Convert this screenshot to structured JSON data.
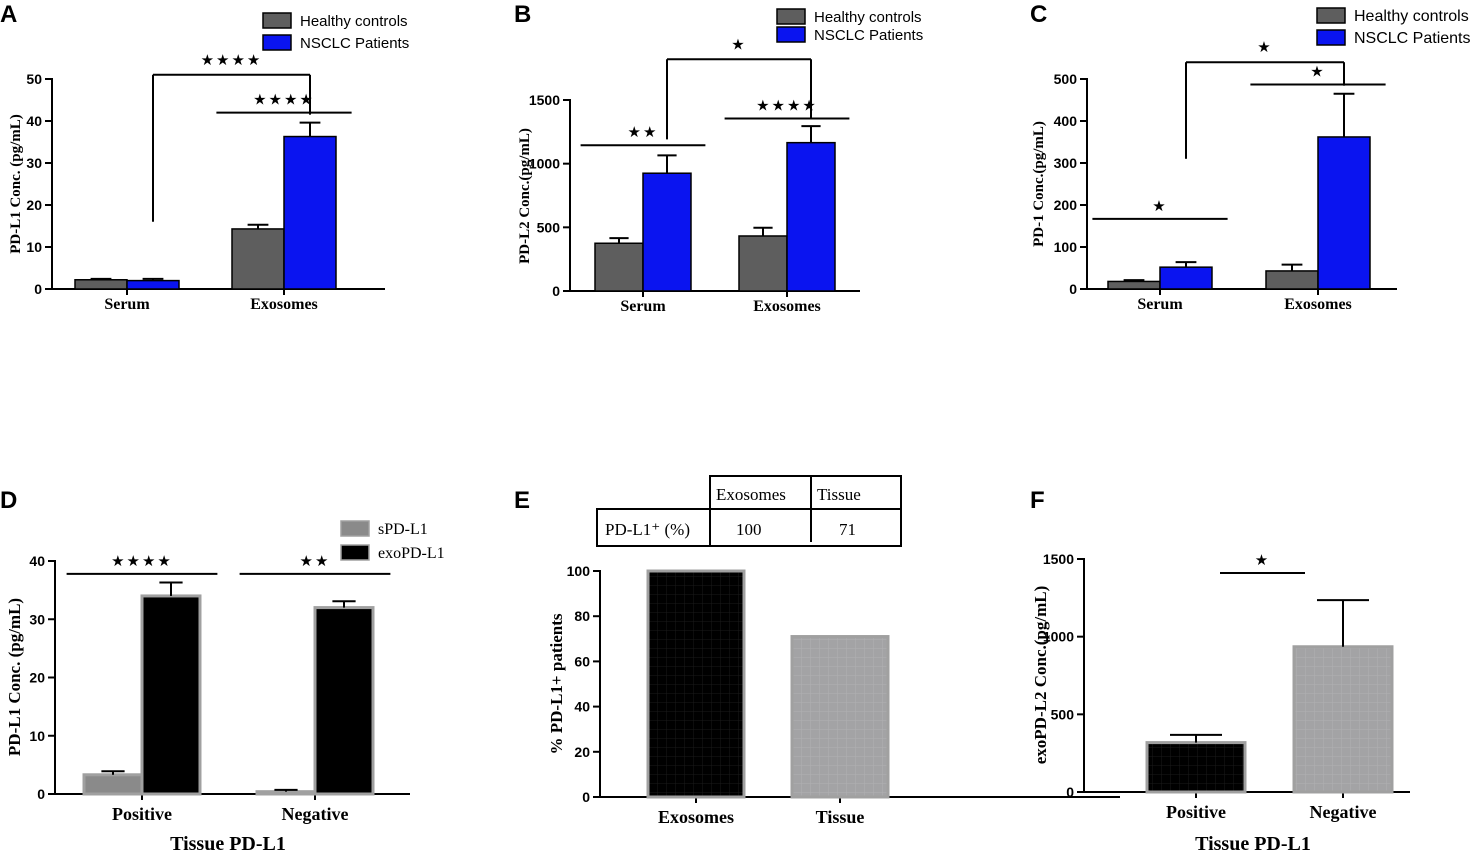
{
  "colors": {
    "healthy": "#5e5e5e",
    "nsclc": "#0a14f0",
    "spdl1": "#8a8a8a",
    "exopdl1": "#000000",
    "exosomes_bar": "#000000",
    "tissue_bar": "#a3a3a5",
    "positive_bar": "#000000",
    "negative_bar": "#a3a3a5"
  },
  "chart_data": [
    {
      "panel": "A",
      "type": "bar",
      "ylabel": "PD-L1 Conc. (pg/mL)",
      "categories": [
        "Serum",
        "Exosomes"
      ],
      "ylim": [
        0,
        50
      ],
      "yticks": [
        0,
        10,
        20,
        30,
        40,
        50
      ],
      "legend": [
        "Healthy controls",
        "NSCLC Patients"
      ],
      "legend_position": "top-right",
      "series": [
        {
          "name": "Healthy controls",
          "color": "healthy",
          "values": [
            2.2,
            14.3
          ],
          "errors": [
            0.2,
            1.0
          ]
        },
        {
          "name": "NSCLC Patients",
          "color": "nsclc",
          "values": [
            2.0,
            36.3
          ],
          "errors": [
            0.4,
            3.3
          ]
        }
      ],
      "annotations": [
        {
          "label": "★★★★",
          "kind": "line",
          "from": [
            1,
            0
          ],
          "to": [
            1,
            1
          ],
          "y": 42
        },
        {
          "label": "★★★★",
          "kind": "bracket",
          "from": [
            0,
            1
          ],
          "to": [
            1,
            1
          ],
          "y": 51
        }
      ]
    },
    {
      "panel": "B",
      "type": "bar",
      "ylabel": "PD-L2 Conc.(pg/mL)",
      "categories": [
        "Serum",
        "Exosomes"
      ],
      "ylim": [
        0,
        1500
      ],
      "yticks": [
        0,
        500,
        1000,
        1500
      ],
      "legend": [
        "Healthy controls",
        "NSCLC Patients"
      ],
      "legend_position": "top-right",
      "series": [
        {
          "name": "Healthy controls",
          "color": "healthy",
          "values": [
            375,
            432
          ],
          "errors": [
            40,
            65
          ]
        },
        {
          "name": "NSCLC Patients",
          "color": "nsclc",
          "values": [
            925,
            1165
          ],
          "errors": [
            140,
            130
          ]
        }
      ],
      "annotations": [
        {
          "label": "★★",
          "kind": "line",
          "from": [
            0,
            0
          ],
          "to": [
            0,
            1
          ],
          "y": 1145
        },
        {
          "label": "★★★★",
          "kind": "line",
          "from": [
            1,
            0
          ],
          "to": [
            1,
            1
          ],
          "y": 1355
        },
        {
          "label": "★",
          "kind": "bracket",
          "from": [
            0,
            1
          ],
          "to": [
            1,
            1
          ],
          "y": 1820
        }
      ]
    },
    {
      "panel": "C",
      "type": "bar",
      "ylabel": "PD-1 Conc.(pg/mL)",
      "categories": [
        "Serum",
        "Exosomes"
      ],
      "ylim": [
        0,
        500
      ],
      "yticks": [
        0,
        100,
        200,
        300,
        400,
        500
      ],
      "legend": [
        "Healthy controls",
        "NSCLC Patients"
      ],
      "legend_position": "top-right",
      "series": [
        {
          "name": "Healthy controls",
          "color": "healthy",
          "values": [
            18,
            43
          ],
          "errors": [
            3,
            15
          ]
        },
        {
          "name": "NSCLC Patients",
          "color": "nsclc",
          "values": [
            52,
            362
          ],
          "errors": [
            12,
            103
          ]
        }
      ],
      "annotations": [
        {
          "label": "★",
          "kind": "line",
          "from": [
            0,
            0
          ],
          "to": [
            0,
            1
          ],
          "y": 167
        },
        {
          "label": "★",
          "kind": "line",
          "from": [
            1,
            0
          ],
          "to": [
            1,
            1
          ],
          "y": 487
        },
        {
          "label": "★",
          "kind": "bracket",
          "from": [
            0,
            1
          ],
          "to": [
            1,
            1
          ],
          "y": 540
        }
      ]
    },
    {
      "panel": "D",
      "type": "bar",
      "ylabel": "PD-L1 Conc. (pg/mL)",
      "xlabel": "Tissue PD-L1",
      "categories": [
        "Positive",
        "Negative"
      ],
      "ylim": [
        0,
        40
      ],
      "yticks": [
        0,
        10,
        20,
        30,
        40
      ],
      "legend": [
        "sPD-L1",
        "exoPD-L1"
      ],
      "legend_position": "top-right",
      "series": [
        {
          "name": "sPD-L1",
          "color": "spdl1",
          "values": [
            3.3,
            0.4
          ],
          "errors": [
            0.6,
            0.3
          ]
        },
        {
          "name": "exoPD-L1",
          "color": "exopdl1",
          "values": [
            34.0,
            32.0
          ],
          "errors": [
            2.3,
            1.1
          ]
        }
      ],
      "annotations": [
        {
          "label": "★★★★",
          "kind": "line",
          "from": [
            0,
            0
          ],
          "to": [
            0,
            1
          ],
          "y": 37.8
        },
        {
          "label": "★★",
          "kind": "line",
          "from": [
            1,
            0
          ],
          "to": [
            1,
            1
          ],
          "y": 37.8
        }
      ]
    },
    {
      "panel": "E",
      "type": "bar",
      "ylabel": "% PD-L1+ patients",
      "categories": [
        "Exosomes",
        "Tissue"
      ],
      "values": [
        100,
        71
      ],
      "bar_colors": [
        "exosomes_bar",
        "tissue_bar"
      ],
      "ylim": [
        0,
        100
      ],
      "yticks": [
        0,
        20,
        40,
        60,
        80,
        100
      ],
      "table": {
        "columns": [
          "Exosomes",
          "Tissue"
        ],
        "row_label": "PD-L1⁺ (%)",
        "row_values": [
          "100",
          "71"
        ]
      }
    },
    {
      "panel": "F",
      "type": "bar",
      "ylabel": "exoPD-L2 Conc.(pg/mL)",
      "xlabel": "Tissue PD-L1",
      "categories": [
        "Positive",
        "Negative"
      ],
      "values": [
        318,
        935
      ],
      "errors": [
        50,
        300
      ],
      "bar_colors": [
        "positive_bar",
        "negative_bar"
      ],
      "ylim": [
        0,
        1500
      ],
      "yticks": [
        0,
        500,
        1000,
        1500
      ],
      "annotations": [
        {
          "label": "★",
          "kind": "line",
          "from": [
            0,
            0
          ],
          "to": [
            1,
            0
          ],
          "y": 1410
        }
      ]
    }
  ]
}
